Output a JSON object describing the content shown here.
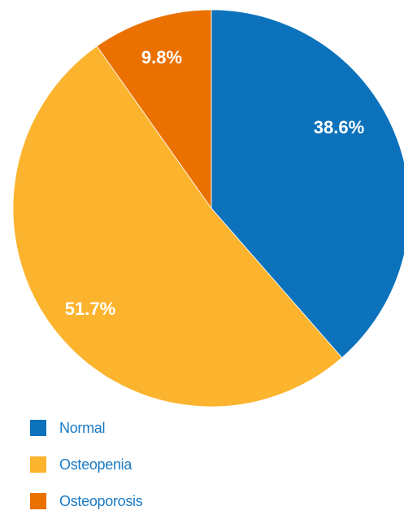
{
  "chart_data": {
    "type": "pie",
    "title": "",
    "start_angle_deg": 0,
    "direction": "clockwise",
    "slices": [
      {
        "label": "Normal",
        "value": 38.6,
        "display": "38.6%",
        "color": "#0b72bb"
      },
      {
        "label": "Osteopenia",
        "value": 51.7,
        "display": "51.7%",
        "color": "#fcb42e"
      },
      {
        "label": "Osteoporosis",
        "value": 9.8,
        "display": "9.8%",
        "color": "#ea7000"
      }
    ],
    "legend": {
      "placement": "bottom-left",
      "text_color": "#1a7ac4"
    }
  }
}
